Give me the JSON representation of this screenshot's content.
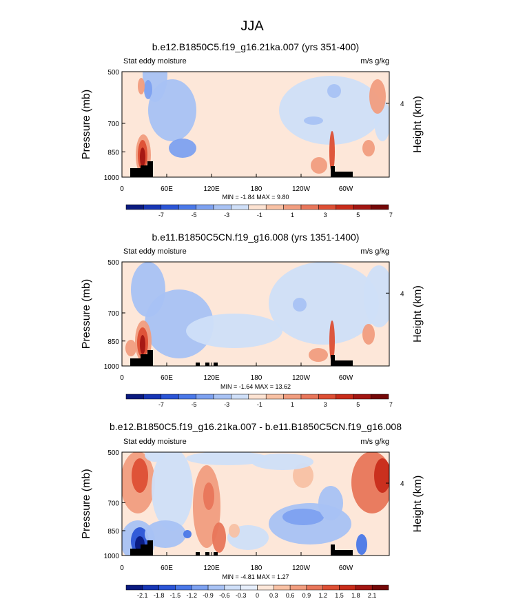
{
  "figure": {
    "title": "JJA"
  },
  "chart_data": [
    {
      "type": "heatmap",
      "title": "b.e12.B1850C5.f19_g16.21ka.007 (yrs 351-400)",
      "left_label": "Stat eddy moisture",
      "right_label": "m/s g/kg",
      "ylabel": "Pressure (mb)",
      "y2label": "Height (km)",
      "yticks": [
        "500",
        "700",
        "850",
        "1000"
      ],
      "y2ticks": [
        "4"
      ],
      "xticks": [
        "0",
        "60E",
        "120E",
        "180",
        "120W",
        "60W"
      ],
      "stats": "MIN =  -1.84  MAX =   9.80",
      "colorbar_ticks": [
        "-7",
        "-5",
        "-3",
        "-1",
        "1",
        "3",
        "5",
        "7"
      ],
      "colorbar_colors": [
        "#0a1a7f",
        "#1736b5",
        "#2b55d6",
        "#4a78e8",
        "#7da1f0",
        "#a8c2f4",
        "#cfdff8",
        "#fde3d2",
        "#f8c1a4",
        "#f19d7f",
        "#e8765a",
        "#dd4f34",
        "#c82c1a",
        "#a21612",
        "#740808"
      ],
      "fields": {
        "background": "#fde7d9",
        "blobs": [
          {
            "x": 225,
            "y": 108,
            "rx": 18,
            "ry": 40,
            "level": 5
          },
          {
            "x": 215,
            "y": 130,
            "rx": 6,
            "ry": 14,
            "level": 4
          },
          {
            "x": 250,
            "y": 160,
            "rx": 35,
            "ry": 45,
            "level": 5
          },
          {
            "x": 265,
            "y": 215,
            "rx": 20,
            "ry": 14,
            "level": 4
          },
          {
            "x": 480,
            "y": 160,
            "rx": 75,
            "ry": 50,
            "level": 6
          },
          {
            "x": 485,
            "y": 132,
            "rx": 10,
            "ry": 10,
            "level": 5
          },
          {
            "x": 455,
            "y": 175,
            "rx": 14,
            "ry": 6,
            "level": 5
          },
          {
            "x": 555,
            "y": 175,
            "rx": 12,
            "ry": 30,
            "level": 6
          },
          {
            "x": 208,
            "y": 225,
            "rx": 11,
            "ry": 30,
            "level": 9
          },
          {
            "x": 207,
            "y": 225,
            "rx": 7,
            "ry": 22,
            "level": 11
          },
          {
            "x": 207,
            "y": 228,
            "rx": 4,
            "ry": 14,
            "level": 13
          },
          {
            "x": 482,
            "y": 220,
            "rx": 4,
            "ry": 30,
            "level": 11
          },
          {
            "x": 463,
            "y": 240,
            "rx": 12,
            "ry": 12,
            "level": 9
          },
          {
            "x": 535,
            "y": 215,
            "rx": 9,
            "ry": 12,
            "level": 9
          },
          {
            "x": 548,
            "y": 140,
            "rx": 12,
            "ry": 25,
            "level": 9
          },
          {
            "x": 205,
            "y": 125,
            "rx": 5,
            "ry": 12,
            "level": 9
          }
        ]
      }
    },
    {
      "type": "heatmap",
      "title": "b.e11.B1850C5CN.f19_g16.008 (yrs 1351-1400)",
      "left_label": "Stat eddy moisture",
      "right_label": "m/s g/kg",
      "ylabel": "Pressure (mb)",
      "y2label": "Height (km)",
      "yticks": [
        "500",
        "700",
        "850",
        "1000"
      ],
      "y2ticks": [
        "4"
      ],
      "xticks": [
        "0",
        "60E",
        "120E",
        "180",
        "120W",
        "60W"
      ],
      "stats": "MIN =  -1.64  MAX =  13.62",
      "colorbar_ticks": [
        "-7",
        "-5",
        "-3",
        "-1",
        "1",
        "3",
        "5",
        "7"
      ],
      "colorbar_colors": [
        "#0a1a7f",
        "#1736b5",
        "#2b55d6",
        "#4a78e8",
        "#7da1f0",
        "#a8c2f4",
        "#cfdff8",
        "#fde3d2",
        "#f8c1a4",
        "#f19d7f",
        "#e8765a",
        "#dd4f34",
        "#c82c1a",
        "#a21612",
        "#740808"
      ],
      "fields": {
        "background": "#fde7d9",
        "blobs": [
          {
            "x": 215,
            "y": 420,
            "rx": 25,
            "ry": 40,
            "level": 5
          },
          {
            "x": 260,
            "y": 470,
            "rx": 50,
            "ry": 50,
            "level": 5
          },
          {
            "x": 470,
            "y": 440,
            "rx": 80,
            "ry": 60,
            "level": 6
          },
          {
            "x": 435,
            "y": 442,
            "rx": 10,
            "ry": 10,
            "level": 5
          },
          {
            "x": 550,
            "y": 430,
            "rx": 22,
            "ry": 45,
            "level": 6
          },
          {
            "x": 340,
            "y": 480,
            "rx": 70,
            "ry": 25,
            "level": 6
          },
          {
            "x": 208,
            "y": 495,
            "rx": 12,
            "ry": 30,
            "level": 9
          },
          {
            "x": 207,
            "y": 497,
            "rx": 8,
            "ry": 22,
            "level": 11
          },
          {
            "x": 207,
            "y": 500,
            "rx": 4,
            "ry": 14,
            "level": 13
          },
          {
            "x": 482,
            "y": 495,
            "rx": 4,
            "ry": 30,
            "level": 11
          },
          {
            "x": 462,
            "y": 515,
            "rx": 14,
            "ry": 10,
            "level": 9
          },
          {
            "x": 535,
            "y": 485,
            "rx": 9,
            "ry": 15,
            "level": 9
          },
          {
            "x": 190,
            "y": 505,
            "rx": 8,
            "ry": 12,
            "level": 9
          }
        ]
      }
    },
    {
      "type": "heatmap",
      "title": "b.e12.B1850C5.f19_g16.21ka.007 - b.e11.B1850C5CN.f19_g16.008",
      "left_label": "Stat eddy moisture",
      "right_label": "m/s g/kg",
      "ylabel": "Pressure (mb)",
      "y2label": "Height (km)",
      "yticks": [
        "500",
        "700",
        "850",
        "1000"
      ],
      "y2ticks": [
        "4"
      ],
      "xticks": [
        "0",
        "60E",
        "120E",
        "180",
        "120W",
        "60W"
      ],
      "stats": "MIN =  -4.81  MAX =   1.27",
      "colorbar_ticks": [
        "-2.1",
        "-1.8",
        "-1.5",
        "-1.2",
        "-0.9",
        "-0.6",
        "-0.3",
        "0",
        "0.3",
        "0.6",
        "0.9",
        "1.2",
        "1.5",
        "1.8",
        "2.1"
      ],
      "colorbar_colors": [
        "#0a1a7f",
        "#1736b5",
        "#2b55d6",
        "#4a78e8",
        "#7da1f0",
        "#a8c2f4",
        "#cfdff8",
        "#e6eefb",
        "#fde7d9",
        "#f8c1a4",
        "#f19d7f",
        "#e8765a",
        "#dd4f34",
        "#c82c1a",
        "#a21612",
        "#740808"
      ],
      "fields": {
        "background": "#fde7d9",
        "blobs": [
          {
            "x": 200,
            "y": 700,
            "rx": 25,
            "ry": 45,
            "level": 10
          },
          {
            "x": 203,
            "y": 690,
            "rx": 12,
            "ry": 25,
            "level": 12
          },
          {
            "x": 300,
            "y": 735,
            "rx": 20,
            "ry": 60,
            "level": 10
          },
          {
            "x": 303,
            "y": 720,
            "rx": 8,
            "ry": 20,
            "level": 11
          },
          {
            "x": 318,
            "y": 780,
            "rx": 10,
            "ry": 22,
            "level": 11
          },
          {
            "x": 540,
            "y": 700,
            "rx": 30,
            "ry": 45,
            "level": 11
          },
          {
            "x": 555,
            "y": 690,
            "rx": 12,
            "ry": 25,
            "level": 13
          },
          {
            "x": 440,
            "y": 690,
            "rx": 15,
            "ry": 18,
            "level": 9
          },
          {
            "x": 330,
            "y": 665,
            "rx": 60,
            "ry": 10,
            "level": 6
          },
          {
            "x": 410,
            "y": 670,
            "rx": 45,
            "ry": 12,
            "level": 6
          },
          {
            "x": 250,
            "y": 710,
            "rx": 30,
            "ry": 60,
            "level": 6
          },
          {
            "x": 450,
            "y": 760,
            "rx": 60,
            "ry": 30,
            "level": 5
          },
          {
            "x": 440,
            "y": 750,
            "rx": 30,
            "ry": 12,
            "level": 4
          },
          {
            "x": 480,
            "y": 730,
            "rx": 18,
            "ry": 25,
            "level": 5
          },
          {
            "x": 200,
            "y": 785,
            "rx": 25,
            "ry": 30,
            "level": 5
          },
          {
            "x": 203,
            "y": 785,
            "rx": 13,
            "ry": 20,
            "level": 2
          },
          {
            "x": 203,
            "y": 790,
            "rx": 7,
            "ry": 12,
            "level": 0
          },
          {
            "x": 240,
            "y": 775,
            "rx": 30,
            "ry": 20,
            "level": 5
          },
          {
            "x": 272,
            "y": 775,
            "rx": 6,
            "ry": 6,
            "level": 3
          },
          {
            "x": 525,
            "y": 790,
            "rx": 8,
            "ry": 15,
            "level": 3
          },
          {
            "x": 360,
            "y": 780,
            "rx": 30,
            "ry": 18,
            "level": 6
          },
          {
            "x": 225,
            "y": 660,
            "rx": 15,
            "ry": 10,
            "level": 6
          },
          {
            "x": 340,
            "y": 770,
            "rx": 8,
            "ry": 10,
            "level": 9
          }
        ]
      }
    }
  ]
}
